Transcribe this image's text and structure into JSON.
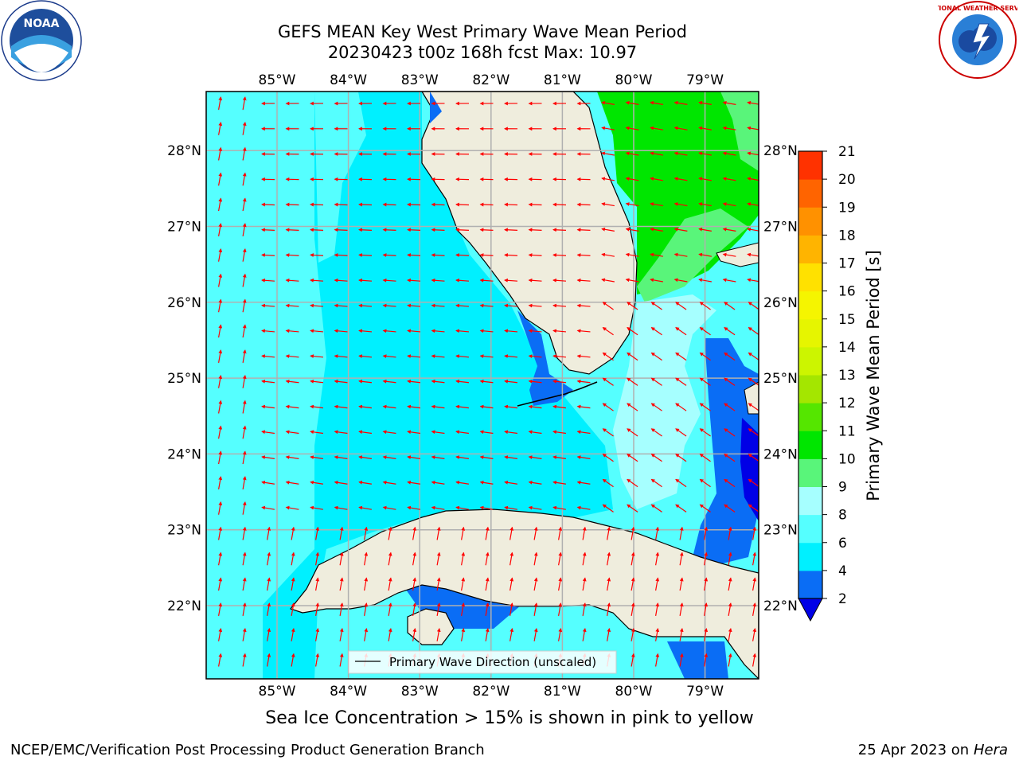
{
  "title": {
    "line1": "GEFS MEAN Key West Primary Wave Mean Period",
    "line2": "20230423 t00z 168h fcst   Max: 10.97"
  },
  "map": {
    "lon_ticks": [
      -85,
      -84,
      -83,
      -82,
      -81,
      -80,
      -79
    ],
    "lat_ticks": [
      22,
      23,
      24,
      25,
      26,
      27,
      28
    ],
    "lon_labels": [
      "85°W",
      "84°W",
      "83°W",
      "82°W",
      "81°W",
      "80°W",
      "79°W"
    ],
    "lat_labels": [
      "22°N",
      "23°N",
      "24°N",
      "25°N",
      "26°N",
      "27°N",
      "28°N"
    ],
    "legend_label": "Primary Wave Direction (unscaled)",
    "arrow_color": "#ff0000",
    "land_color": "#efeddd"
  },
  "colorbar": {
    "label": "Primary Wave Mean Period [s]",
    "ticks": [
      "2",
      "4",
      "6",
      "8",
      "9",
      "10",
      "11",
      "12",
      "13",
      "14",
      "15",
      "16",
      "17",
      "18",
      "19",
      "20",
      "21"
    ],
    "colors": [
      "#0a6df5",
      "#00f0ff",
      "#55ffff",
      "#a6ffff",
      "#59f57a",
      "#00e600",
      "#55e600",
      "#a4e600",
      "#ccf500",
      "#e6f500",
      "#f5f500",
      "#ffe100",
      "#ffb400",
      "#ff9100",
      "#ff6400",
      "#ff3200"
    ],
    "under_color": "#0000e6"
  },
  "note": "Sea Ice Concentration > 15% is shown in pink to yellow",
  "footer": {
    "left": "NCEP/EMC/Verification Post Processing Product Generation Branch",
    "right_prefix": "25 Apr 2023 on ",
    "right_host": "Hera"
  },
  "logos": {
    "noaa_text": "NOAA",
    "nws_text": "NATIONAL WEATHER SERVICE"
  }
}
